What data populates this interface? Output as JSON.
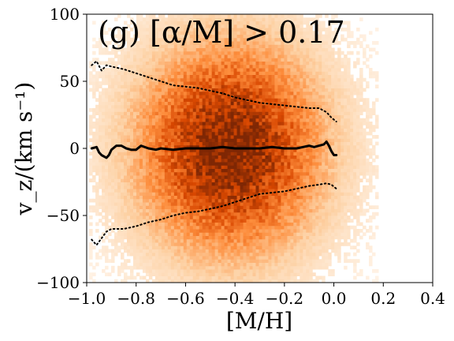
{
  "chart_data": {
    "type": "heatmap",
    "title": "(g) [α/M] > 0.17",
    "xlabel": "[M/H]",
    "ylabel": "v_z/(km s⁻¹)",
    "xlim": [
      -1.0,
      0.4
    ],
    "ylim": [
      -100,
      100
    ],
    "xticks": [
      -1.0,
      -0.8,
      -0.6,
      -0.4,
      -0.2,
      0.0,
      0.2,
      0.4
    ],
    "xtick_labels": [
      "−1.0",
      "−0.8",
      "−0.6",
      "−0.4",
      "−0.2",
      "0.0",
      "0.2",
      "0.4"
    ],
    "yticks": [
      -100,
      -50,
      0,
      50,
      100
    ],
    "ytick_labels": [
      "−100",
      "−50",
      "0",
      "50",
      "100"
    ],
    "grid": false,
    "colormap": [
      "#fff5eb",
      "#fdd0a2",
      "#fd8d3c",
      "#d94801",
      "#7f2704"
    ],
    "density": {
      "x_center": -0.42,
      "x_sigma": 0.2,
      "y_center": 0,
      "y_sigma": 42,
      "x_extent": [
        -0.99,
        0.18
      ]
    },
    "series": [
      {
        "style": "solid",
        "color": "#000000",
        "x": [
          -0.98,
          -0.96,
          -0.95,
          -0.94,
          -0.92,
          -0.91,
          -0.9,
          -0.88,
          -0.86,
          -0.84,
          -0.82,
          -0.8,
          -0.78,
          -0.75,
          -0.72,
          -0.7,
          -0.65,
          -0.6,
          -0.55,
          -0.5,
          -0.45,
          -0.4,
          -0.35,
          -0.3,
          -0.25,
          -0.2,
          -0.15,
          -0.1,
          -0.08,
          -0.06,
          -0.04,
          -0.03,
          -0.02,
          -0.01,
          0.0,
          0.01
        ],
        "y": [
          0,
          1,
          -3,
          -5,
          -7,
          -5,
          -1,
          2,
          2,
          0,
          -1,
          -1,
          2,
          0,
          -1,
          0,
          -1,
          0,
          0,
          0,
          1,
          0,
          0,
          0,
          1,
          0,
          0,
          2,
          1,
          2,
          3,
          5,
          2,
          -2,
          -5,
          -5
        ]
      },
      {
        "style": "dotted",
        "color": "#000000",
        "x": [
          -0.98,
          -0.96,
          -0.94,
          -0.92,
          -0.9,
          -0.85,
          -0.8,
          -0.75,
          -0.7,
          -0.65,
          -0.6,
          -0.55,
          -0.5,
          -0.45,
          -0.4,
          -0.35,
          -0.3,
          -0.25,
          -0.2,
          -0.15,
          -0.1,
          -0.06,
          -0.03,
          -0.01,
          0.01
        ],
        "y": [
          62,
          65,
          58,
          62,
          61,
          59,
          56,
          53,
          50,
          47,
          46,
          45,
          43,
          41,
          38,
          36,
          34,
          33,
          32,
          31,
          30,
          30,
          27,
          23,
          20
        ]
      },
      {
        "style": "dotted",
        "color": "#000000",
        "x": [
          -0.98,
          -0.96,
          -0.94,
          -0.92,
          -0.9,
          -0.85,
          -0.8,
          -0.75,
          -0.7,
          -0.65,
          -0.6,
          -0.55,
          -0.5,
          -0.45,
          -0.4,
          -0.35,
          -0.3,
          -0.25,
          -0.2,
          -0.15,
          -0.1,
          -0.06,
          -0.03,
          -0.01,
          0.01
        ],
        "y": [
          -68,
          -72,
          -67,
          -62,
          -60,
          -60,
          -58,
          -55,
          -53,
          -50,
          -48,
          -47,
          -45,
          -43,
          -40,
          -37,
          -34,
          -33,
          -32,
          -30,
          -28,
          -27,
          -26,
          -27,
          -30
        ]
      }
    ]
  }
}
